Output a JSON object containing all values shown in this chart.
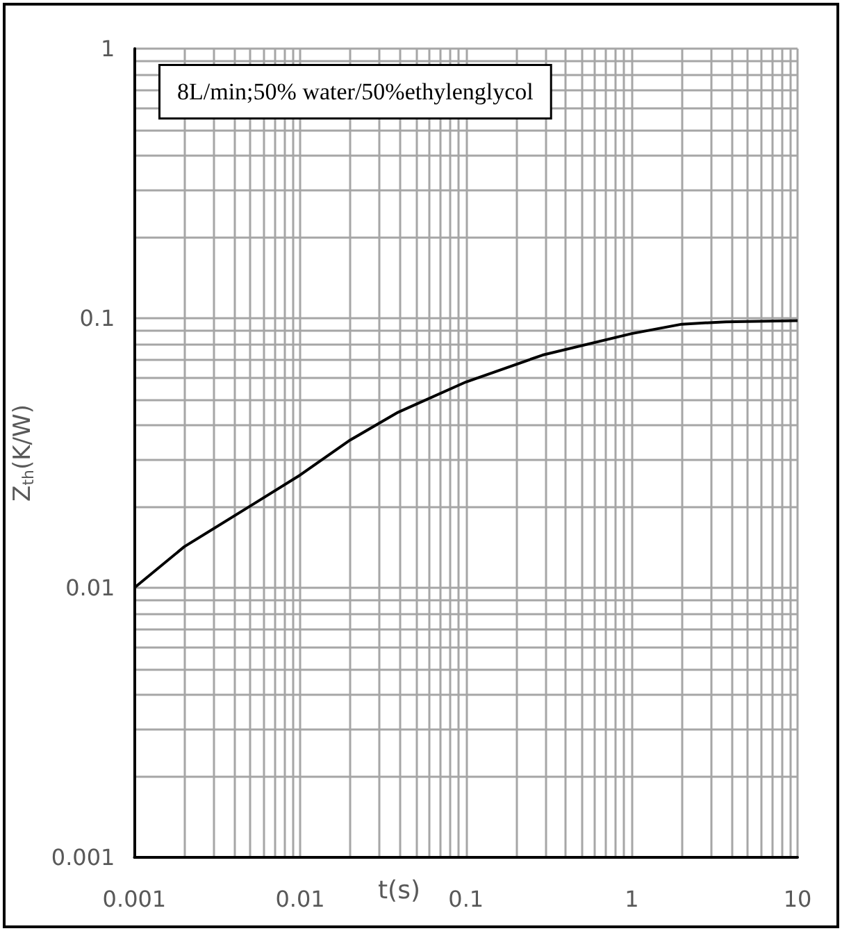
{
  "chart_data": {
    "type": "line",
    "xlabel": "t(s)",
    "ylabel": "Z$_{th}$(K/W)",
    "annotations": [
      "8L/min;50% water/50%ethylenglycol"
    ],
    "log": "xy",
    "grid": true,
    "marker": "none",
    "line_style": "solid",
    "xlim": [
      0.001,
      10
    ],
    "xticks": [
      0.001,
      0.01,
      0.1,
      1,
      10
    ],
    "ylim": [
      0.001,
      1
    ],
    "yticks": [
      0.001,
      0.01,
      0.1,
      1
    ],
    "series": [
      {
        "color": "#000000",
        "x": [
          0.001,
          0.002,
          0.0054,
          0.01,
          0.02,
          0.039,
          0.1,
          0.29,
          1,
          2,
          3.7,
          10
        ],
        "values": [
          0.01,
          0.0142,
          0.0207,
          0.0262,
          0.0353,
          0.0448,
          0.058,
          0.073,
          0.0877,
          0.095,
          0.097,
          0.098
        ]
      }
    ]
  }
}
